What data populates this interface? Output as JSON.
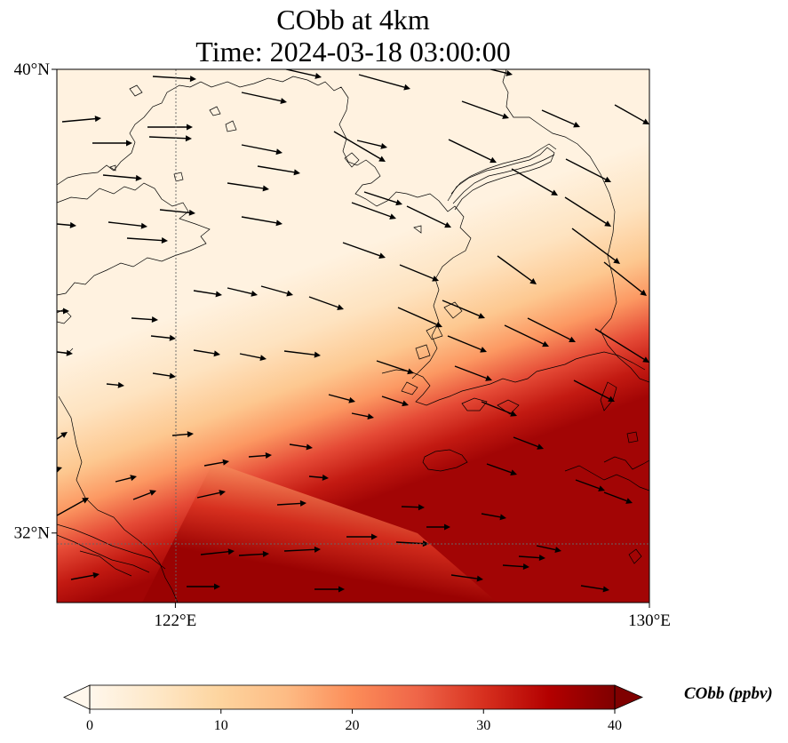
{
  "title": {
    "line1": "CObb at 4km",
    "line2": "Time: 2024-03-18 03:00:00"
  },
  "map": {
    "lat_range": [
      30.8,
      40
    ],
    "lon_range": [
      120,
      130
    ],
    "lat_ticks": [
      {
        "value": 40,
        "label": "40°N"
      },
      {
        "value": 32,
        "label": "32°N"
      }
    ],
    "lon_ticks": [
      {
        "value": 122,
        "label": "122°E"
      },
      {
        "value": 130,
        "label": "130°E"
      }
    ],
    "gridlines": true
  },
  "colorbar": {
    "label": "CObb (ppbv)",
    "min": 0,
    "max": 40,
    "ticks": [
      {
        "value": 0,
        "label": "0"
      },
      {
        "value": 10,
        "label": "10"
      },
      {
        "value": 20,
        "label": "20"
      },
      {
        "value": 30,
        "label": "30"
      },
      {
        "value": 40,
        "label": "40"
      }
    ],
    "colormap": "OrRd",
    "colors": [
      "#fff7ec",
      "#fee8c8",
      "#fdd49e",
      "#fdbb84",
      "#fc8d59",
      "#ef6548",
      "#d7301f",
      "#b30000",
      "#7f0000"
    ],
    "extend": "both"
  }
}
